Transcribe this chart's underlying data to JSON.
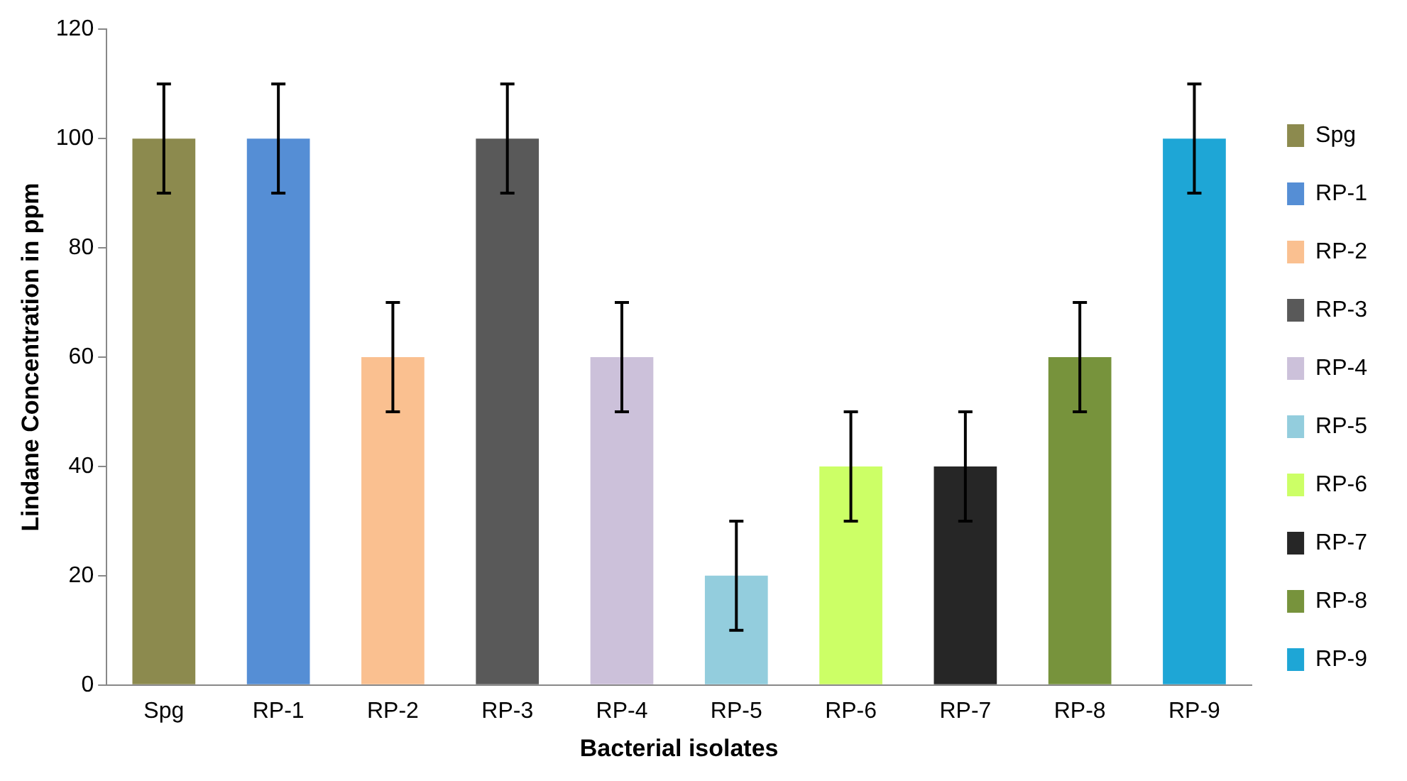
{
  "chart_data": {
    "type": "bar",
    "xlabel": "Bacterial isolates",
    "ylabel": "Lindane Concentration in ppm",
    "categories": [
      "Spg",
      "RP-1",
      "RP-2",
      "RP-3",
      "RP-4",
      "RP-5",
      "RP-6",
      "RP-7",
      "RP-8",
      "RP-9"
    ],
    "series": [
      {
        "name": "Spg",
        "color": "#8c8a4e",
        "values": [
          100,
          null,
          null,
          null,
          null,
          null,
          null,
          null,
          null,
          null
        ],
        "errors": [
          10,
          null,
          null,
          null,
          null,
          null,
          null,
          null,
          null,
          null
        ]
      },
      {
        "name": "RP-1",
        "color": "#558ed5",
        "values": [
          null,
          100,
          null,
          null,
          null,
          null,
          null,
          null,
          null,
          null
        ],
        "errors": [
          null,
          10,
          null,
          null,
          null,
          null,
          null,
          null,
          null,
          null
        ]
      },
      {
        "name": "RP-2",
        "color": "#fac090",
        "values": [
          null,
          null,
          60,
          null,
          null,
          null,
          null,
          null,
          null,
          null
        ],
        "errors": [
          null,
          null,
          10,
          null,
          null,
          null,
          null,
          null,
          null,
          null
        ]
      },
      {
        "name": "RP-3",
        "color": "#595959",
        "values": [
          null,
          null,
          null,
          100,
          null,
          null,
          null,
          null,
          null,
          null
        ],
        "errors": [
          null,
          null,
          null,
          10,
          null,
          null,
          null,
          null,
          null,
          null
        ]
      },
      {
        "name": "RP-4",
        "color": "#ccc1da",
        "values": [
          null,
          null,
          null,
          null,
          60,
          null,
          null,
          null,
          null,
          null
        ],
        "errors": [
          null,
          null,
          null,
          null,
          10,
          null,
          null,
          null,
          null,
          null
        ]
      },
      {
        "name": "RP-5",
        "color": "#93cddd",
        "values": [
          null,
          null,
          null,
          null,
          null,
          20,
          null,
          null,
          null,
          null
        ],
        "errors": [
          null,
          null,
          null,
          null,
          null,
          10,
          null,
          null,
          null,
          null
        ]
      },
      {
        "name": "RP-6",
        "color": "#ccff66",
        "values": [
          null,
          null,
          null,
          null,
          null,
          null,
          40,
          null,
          null,
          null
        ],
        "errors": [
          null,
          null,
          null,
          null,
          null,
          null,
          10,
          null,
          null,
          null
        ]
      },
      {
        "name": "RP-7",
        "color": "#262626",
        "values": [
          null,
          null,
          null,
          null,
          null,
          null,
          null,
          40,
          null,
          null
        ],
        "errors": [
          null,
          null,
          null,
          null,
          null,
          null,
          null,
          10,
          null,
          null
        ]
      },
      {
        "name": "RP-8",
        "color": "#77933c",
        "values": [
          null,
          null,
          null,
          null,
          null,
          null,
          null,
          null,
          60,
          null
        ],
        "errors": [
          null,
          null,
          null,
          null,
          null,
          null,
          null,
          null,
          10,
          null
        ]
      },
      {
        "name": "RP-9",
        "color": "#1ea6d6",
        "values": [
          null,
          null,
          null,
          null,
          null,
          null,
          null,
          null,
          null,
          100
        ],
        "errors": [
          null,
          null,
          null,
          null,
          null,
          null,
          null,
          null,
          null,
          10
        ]
      }
    ],
    "ylim": [
      0,
      120
    ],
    "yticks": [
      0,
      20,
      40,
      60,
      80,
      100,
      120
    ],
    "grid": false,
    "legend": "right"
  }
}
